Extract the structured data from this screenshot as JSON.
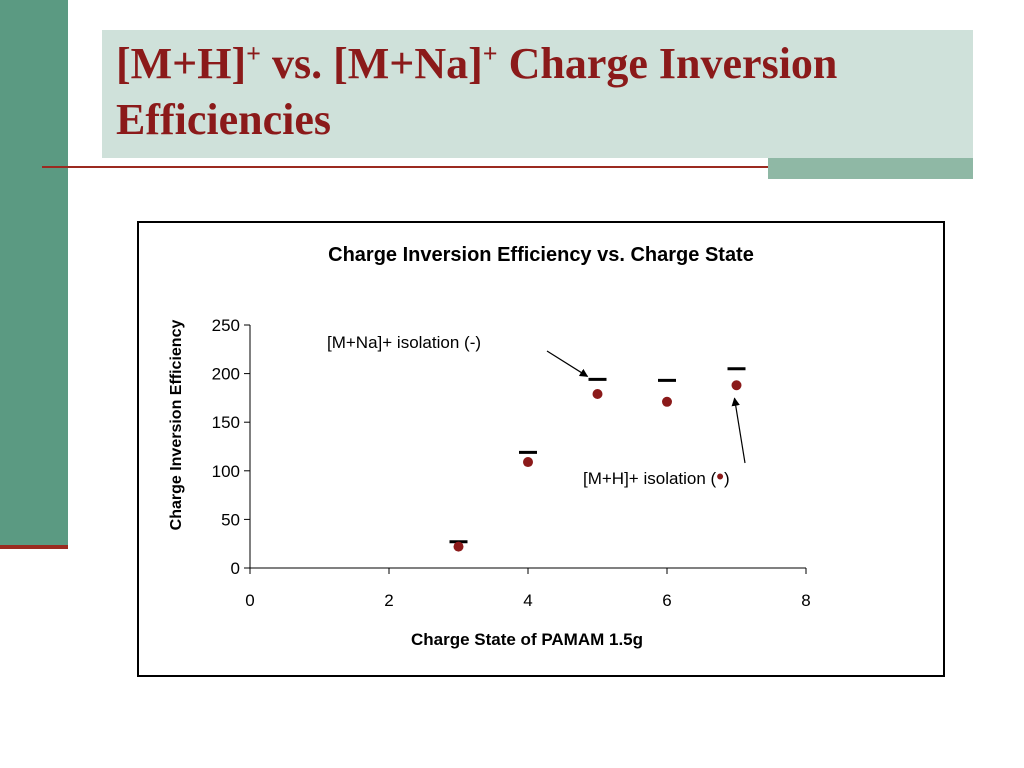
{
  "slide": {
    "title_part1": "[M+H]",
    "title_sup1": "+",
    "title_part2": " vs. [M+Na]",
    "title_sup2": "+",
    "title_part3": " Charge Inversion Efficiencies",
    "colors": {
      "title": "#8b1a1a",
      "left_bar": "#5b9a82",
      "title_box": "#cfe1da",
      "accent": "#8fb8a5",
      "rule": "#9b2a20"
    }
  },
  "chart_data": {
    "type": "scatter",
    "title": "Charge Inversion Efficiency vs. Charge State",
    "xlabel": "Charge State of PAMAM 1.5g",
    "ylabel": "Charge Inversion Efficiency",
    "xlim": [
      0,
      8
    ],
    "ylim": [
      0,
      250
    ],
    "x_ticks": [
      0,
      2,
      4,
      6,
      8
    ],
    "y_ticks": [
      0,
      50,
      100,
      150,
      200,
      250
    ],
    "grid": false,
    "legend": "none",
    "series": [
      {
        "marker": "dash",
        "color": "#000000",
        "points": [
          {
            "x": 3,
            "y": 27
          },
          {
            "x": 4,
            "y": 119
          },
          {
            "x": 5,
            "y": 194
          },
          {
            "x": 6,
            "y": 193
          },
          {
            "x": 7,
            "y": 205
          }
        ]
      },
      {
        "marker": "circle",
        "color": "#8b1a1a",
        "points": [
          {
            "x": 3,
            "y": 22
          },
          {
            "x": 4,
            "y": 109
          },
          {
            "x": 5,
            "y": 179
          },
          {
            "x": 6,
            "y": 171
          },
          {
            "x": 7,
            "y": 188
          }
        ]
      }
    ],
    "annotations": [
      {
        "text_before": "[M+Na]+ isolation (",
        "symbol": "-",
        "text_after": ")",
        "points_to_series": 0,
        "points_to_x": 5
      },
      {
        "text_before": "[M+H]+ isolation (",
        "symbol": "•",
        "text_after": ")",
        "points_to_series": 1,
        "points_to_x": 7
      }
    ]
  }
}
